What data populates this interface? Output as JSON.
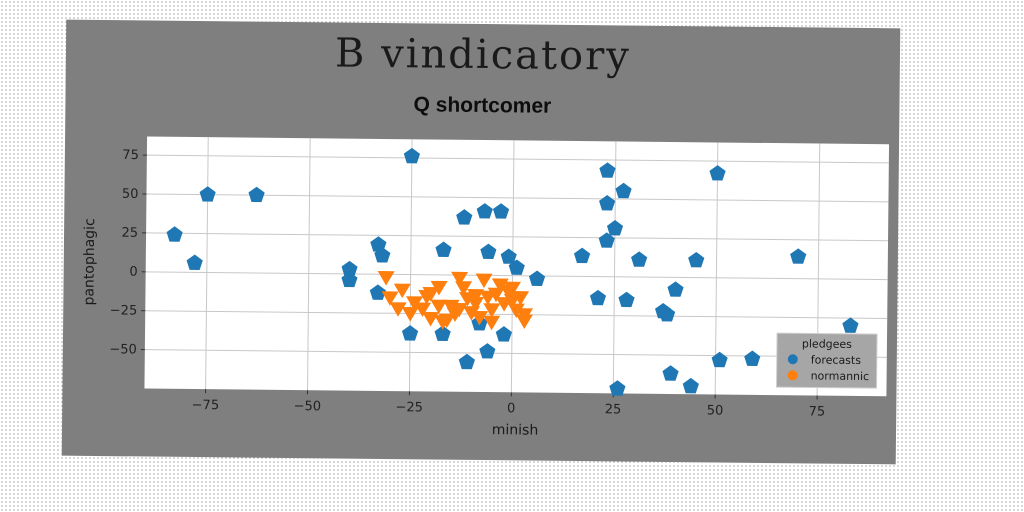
{
  "chart_data": {
    "type": "scatter",
    "suptitle": "B vindicatory",
    "title": "Q shortcomer",
    "xlabel": "minish",
    "ylabel": "pantophagic",
    "xlim": [
      -90,
      92
    ],
    "ylim": [
      -75,
      87
    ],
    "xticks": [
      -75,
      -50,
      -25,
      0,
      25,
      50,
      75
    ],
    "yticks": [
      -50,
      -25,
      0,
      25,
      50,
      75
    ],
    "grid": true,
    "legend": {
      "title": "pledgees",
      "placement": "lower-right"
    },
    "series": [
      {
        "name": "forecasts",
        "marker": "pentagon",
        "color": "#1f77b4",
        "points": [
          [
            -83,
            24
          ],
          [
            -78,
            6
          ],
          [
            -75,
            50
          ],
          [
            -63,
            50
          ],
          [
            -25,
            76
          ],
          [
            -40,
            3
          ],
          [
            -40,
            -4
          ],
          [
            -33,
            19
          ],
          [
            -32,
            12
          ],
          [
            -33,
            -12
          ],
          [
            -25,
            -38
          ],
          [
            -17,
            -38
          ],
          [
            -17,
            16
          ],
          [
            -12,
            37
          ],
          [
            -7,
            41
          ],
          [
            -3,
            41
          ],
          [
            -6,
            15
          ],
          [
            -1,
            12
          ],
          [
            1,
            5
          ],
          [
            6,
            -2
          ],
          [
            -11,
            -56
          ],
          [
            -6,
            -49
          ],
          [
            -8,
            -31
          ],
          [
            -2,
            -38
          ],
          [
            17,
            13
          ],
          [
            21,
            -14
          ],
          [
            23,
            23
          ],
          [
            23,
            47
          ],
          [
            23,
            68
          ],
          [
            25,
            31
          ],
          [
            27,
            55
          ],
          [
            28,
            -15
          ],
          [
            31,
            11
          ],
          [
            26,
            -72
          ],
          [
            37,
            -22
          ],
          [
            38,
            -24
          ],
          [
            40,
            -8
          ],
          [
            39,
            -62
          ],
          [
            44,
            -70
          ],
          [
            45,
            11
          ],
          [
            50,
            67
          ],
          [
            51,
            -53
          ],
          [
            59,
            -52
          ],
          [
            70,
            14
          ],
          [
            83,
            -30
          ]
        ]
      },
      {
        "name": "normannic",
        "marker": "triangle-down",
        "color": "#ff7f0e",
        "points": [
          [
            -31,
            -2
          ],
          [
            -30,
            -15
          ],
          [
            -28,
            -22
          ],
          [
            -25,
            -25
          ],
          [
            -24,
            -18
          ],
          [
            -22,
            -22
          ],
          [
            -21,
            -14
          ],
          [
            -20,
            -28
          ],
          [
            -18,
            -8
          ],
          [
            -18,
            -20
          ],
          [
            -16,
            -29
          ],
          [
            -15,
            -20
          ],
          [
            -14,
            -25
          ],
          [
            -13,
            -22
          ],
          [
            -12,
            -8
          ],
          [
            -11,
            -15
          ],
          [
            -10,
            -24
          ],
          [
            -9,
            -18
          ],
          [
            -8,
            -27
          ],
          [
            -7,
            -3
          ],
          [
            -6,
            -14
          ],
          [
            -5,
            -22
          ],
          [
            -4,
            -12
          ],
          [
            -3,
            -6
          ],
          [
            -2,
            -18
          ],
          [
            -1,
            -10
          ],
          [
            0,
            -16
          ],
          [
            1,
            -22
          ],
          [
            2,
            -14
          ],
          [
            3,
            -25
          ],
          [
            3,
            -29
          ],
          [
            -17,
            -30
          ],
          [
            -5,
            -30
          ],
          [
            -13,
            -2
          ],
          [
            -20,
            -12
          ],
          [
            0,
            -8
          ],
          [
            -27,
            -10
          ],
          [
            -9,
            -13
          ]
        ]
      }
    ]
  }
}
